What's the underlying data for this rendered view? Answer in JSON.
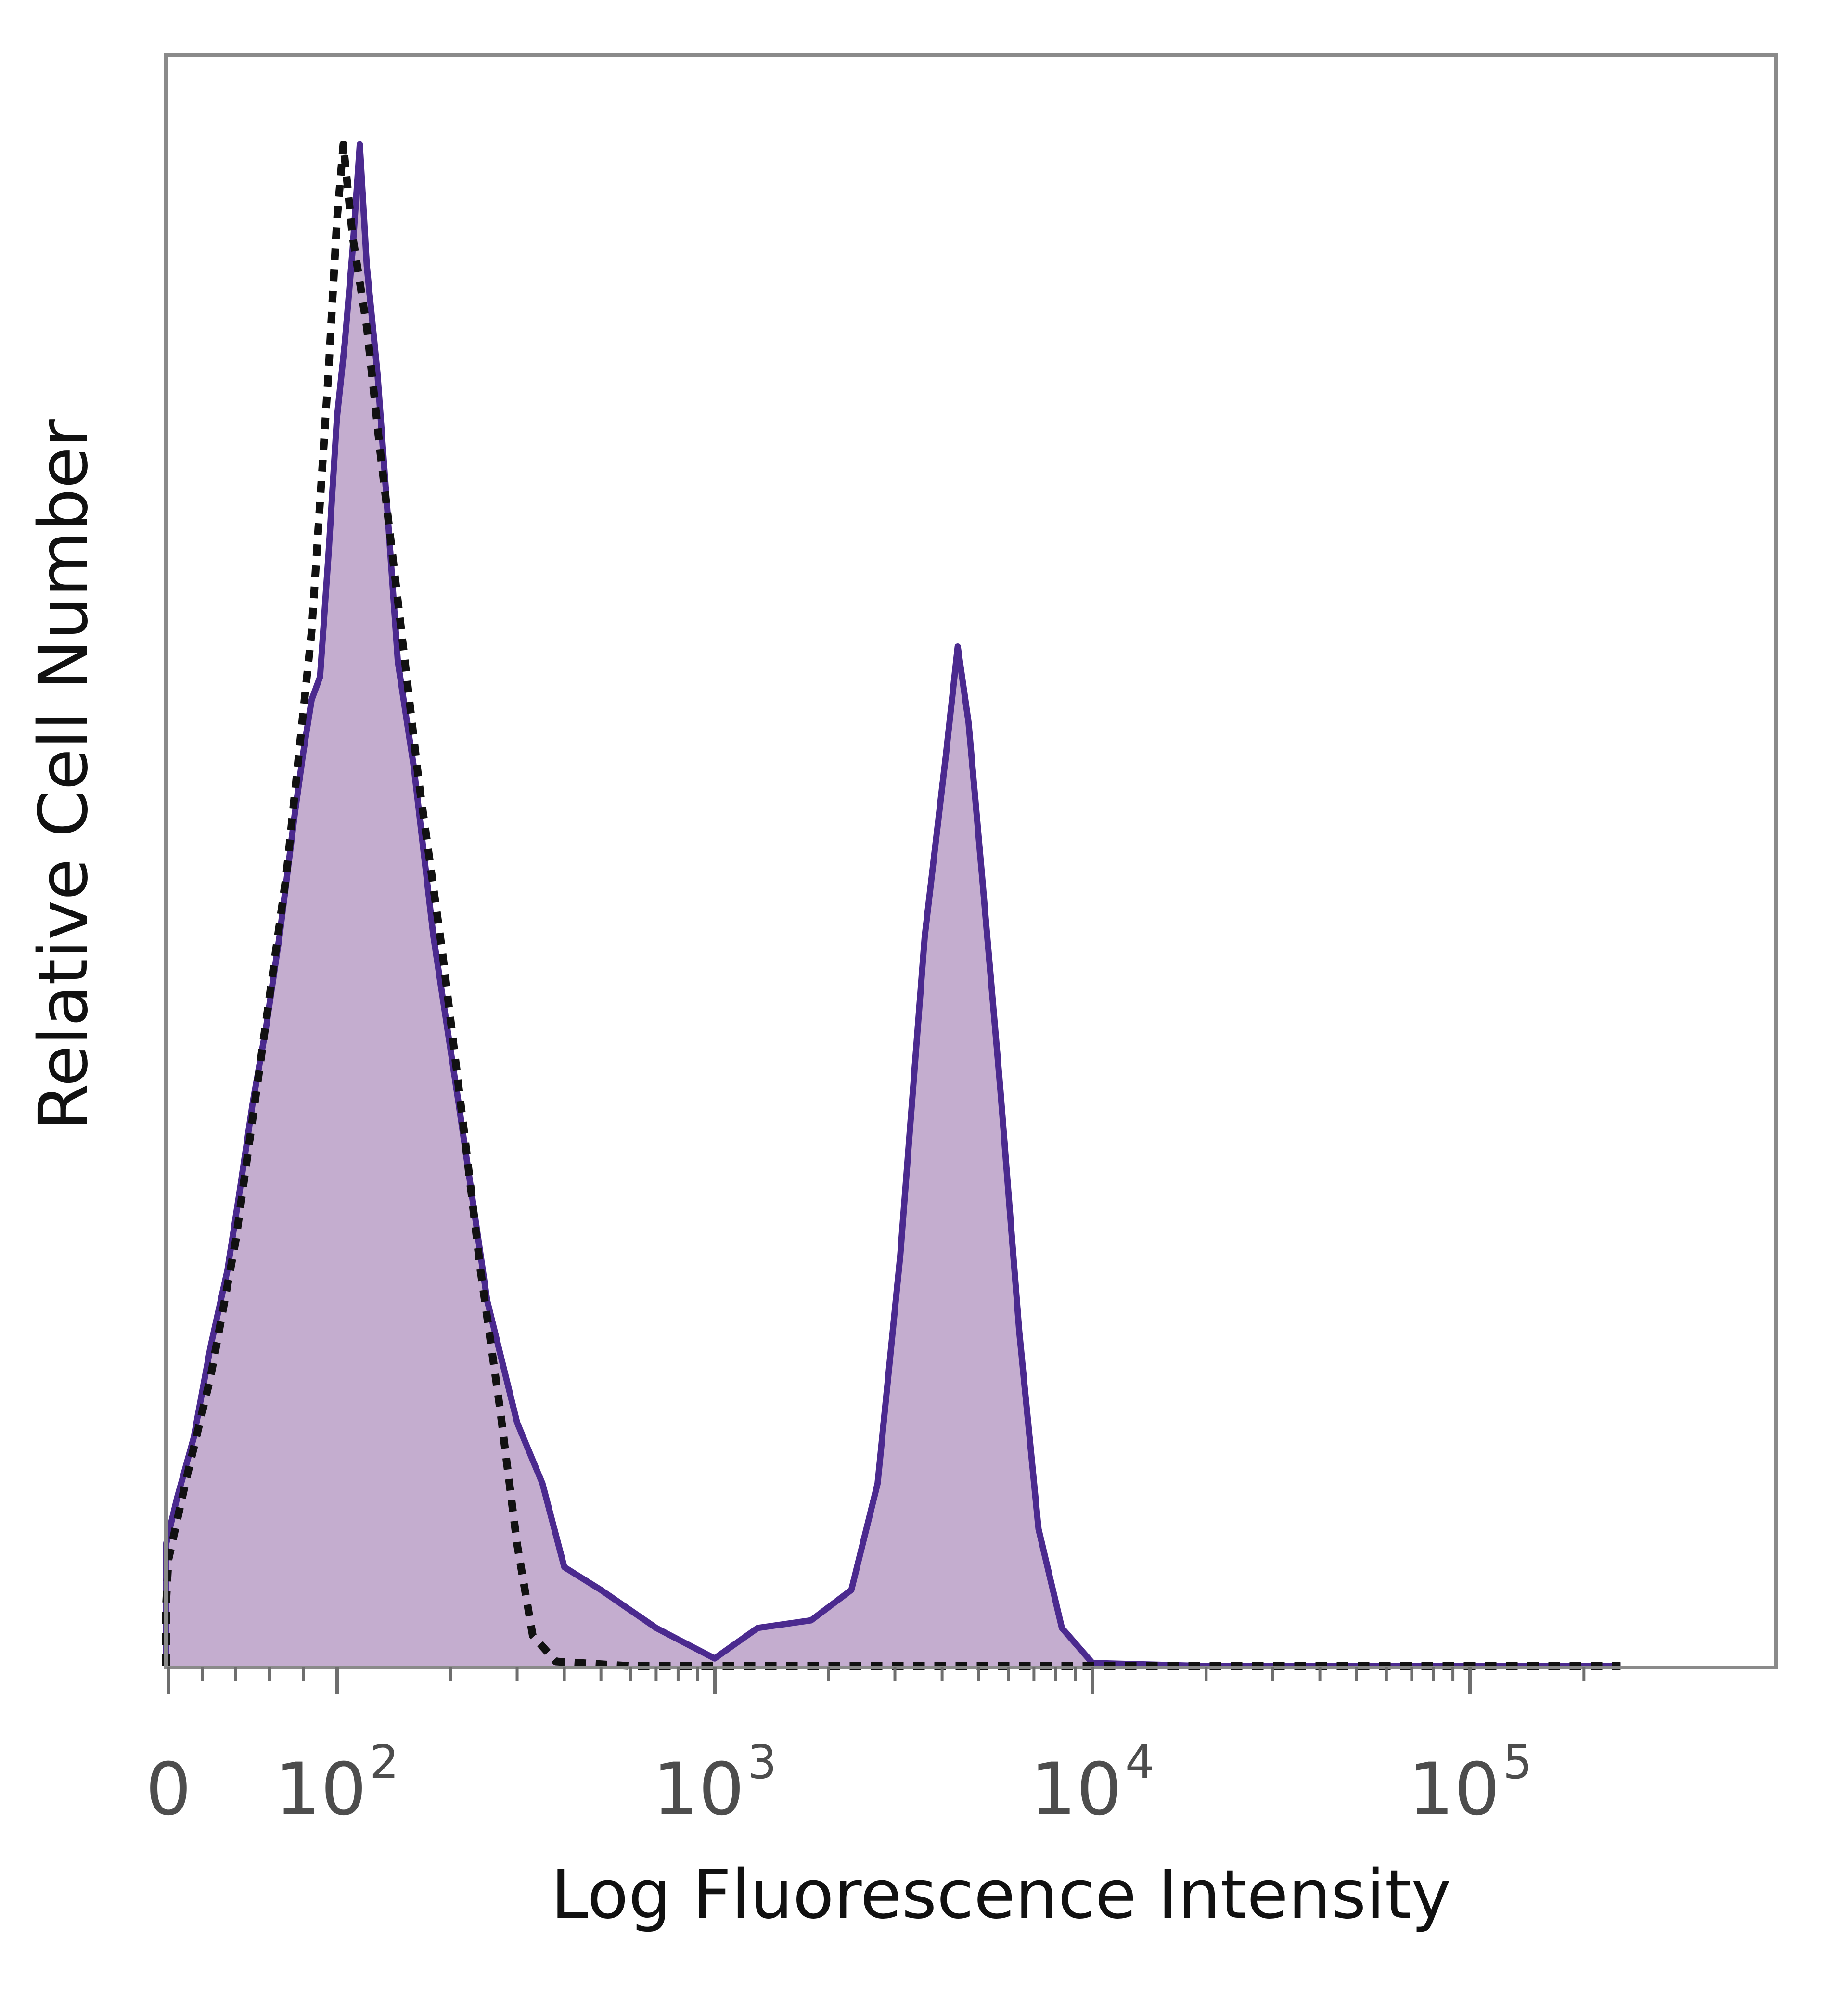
{
  "chart_data": {
    "type": "area",
    "title": "",
    "xlabel": "Log Fluorescence Intensity",
    "ylabel": "Relative Cell Number",
    "x_scale": "biexponential",
    "xlim": [
      -50,
      250000
    ],
    "ylim": [
      0,
      100
    ],
    "x_ticks": [
      {
        "value": 0,
        "base": "0",
        "exp": ""
      },
      {
        "value": 100,
        "base": "10",
        "exp": "2"
      },
      {
        "value": 1000,
        "base": "10",
        "exp": "3"
      },
      {
        "value": 10000,
        "base": "10",
        "exp": "4"
      },
      {
        "value": 100000,
        "base": "10",
        "exp": "5"
      }
    ],
    "grid": false,
    "legend": "none",
    "colors": {
      "stained_line": "#4b2a8f",
      "stained_fill": "#c4adcf",
      "control_line": "#111111",
      "frame": "#8a8a8a"
    },
    "series": [
      {
        "style": "filled-solid",
        "points": [
          [
            -50,
            0.3
          ],
          [
            -30,
            1.2
          ],
          [
            -15,
            3.5
          ],
          [
            -3,
            8.0
          ],
          [
            5,
            11.0
          ],
          [
            15,
            15.0
          ],
          [
            25,
            21.0
          ],
          [
            35,
            26.0
          ],
          [
            42,
            31.0
          ],
          [
            50,
            37.0
          ],
          [
            58,
            42.0
          ],
          [
            66,
            48.0
          ],
          [
            75,
            56.0
          ],
          [
            80,
            60.0
          ],
          [
            85,
            63.5
          ],
          [
            90,
            65.0
          ],
          [
            95,
            73.0
          ],
          [
            100,
            82.0
          ],
          [
            105,
            87.0
          ],
          [
            110,
            93.0
          ],
          [
            115,
            100.0
          ],
          [
            120,
            92.0
          ],
          [
            128,
            85.0
          ],
          [
            136,
            76.0
          ],
          [
            145,
            66.0
          ],
          [
            160,
            59.0
          ],
          [
            180,
            48.0
          ],
          [
            210,
            37.0
          ],
          [
            250,
            24.0
          ],
          [
            300,
            16.0
          ],
          [
            350,
            12.0
          ],
          [
            400,
            6.5
          ],
          [
            500,
            5.0
          ],
          [
            700,
            2.5
          ],
          [
            1000,
            0.5
          ],
          [
            1300,
            2.5
          ],
          [
            1800,
            3.0
          ],
          [
            2300,
            5.0
          ],
          [
            2700,
            12.0
          ],
          [
            3100,
            27.0
          ],
          [
            3600,
            48.0
          ],
          [
            4100,
            60.0
          ],
          [
            4400,
            67.0
          ],
          [
            4700,
            62.0
          ],
          [
            5100,
            52.0
          ],
          [
            5700,
            38.0
          ],
          [
            6400,
            22.0
          ],
          [
            7200,
            9.0
          ],
          [
            8300,
            2.5
          ],
          [
            10000,
            0.2
          ],
          [
            20000,
            0.0
          ],
          [
            100000,
            0.0
          ],
          [
            250000,
            0.0
          ]
        ]
      },
      {
        "style": "dashed",
        "points": [
          [
            -50,
            0.0
          ],
          [
            -25,
            0.8
          ],
          [
            -10,
            4.0
          ],
          [
            0,
            7.0
          ],
          [
            10,
            12.0
          ],
          [
            25,
            19.0
          ],
          [
            40,
            28.0
          ],
          [
            55,
            40.0
          ],
          [
            70,
            52.0
          ],
          [
            85,
            68.0
          ],
          [
            95,
            85.0
          ],
          [
            100,
            95.0
          ],
          [
            104,
            100.0
          ],
          [
            110,
            94.0
          ],
          [
            120,
            88.0
          ],
          [
            130,
            80.0
          ],
          [
            145,
            70.0
          ],
          [
            165,
            58.0
          ],
          [
            190,
            47.0
          ],
          [
            215,
            36.0
          ],
          [
            240,
            26.0
          ],
          [
            270,
            17.0
          ],
          [
            300,
            8.0
          ],
          [
            330,
            2.0
          ],
          [
            380,
            0.3
          ],
          [
            600,
            0.0
          ],
          [
            100000,
            0.0
          ],
          [
            250000,
            0.0
          ]
        ]
      }
    ]
  }
}
